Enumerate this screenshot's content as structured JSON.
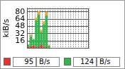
{
  "chart_data": {
    "type": "bar",
    "y_label": "kiB/s",
    "categories": [
      null,
      null,
      null,
      null,
      null,
      null,
      null,
      null,
      null,
      null,
      null,
      null,
      null,
      null,
      null,
      null,
      null,
      null,
      null,
      null,
      null,
      null,
      null,
      null
    ],
    "series": [
      {
        "color": "#e8322e",
        "values": [
          2,
          4,
          6,
          3,
          2,
          8,
          3,
          2,
          1,
          null,
          null,
          null,
          null,
          null,
          null,
          null,
          null,
          null,
          null,
          null,
          null,
          null,
          null,
          null
        ]
      },
      {
        "color": "#2db84a",
        "values": [
          6,
          22,
          14,
          58,
          72,
          28,
          50,
          70,
          4,
          null,
          null,
          null,
          null,
          null,
          null,
          null,
          null,
          null,
          null,
          null,
          null,
          null,
          null,
          null
        ]
      },
      {
        "color": "#f5a623",
        "values": [
          0,
          4,
          0,
          6,
          8,
          4,
          6,
          8,
          2,
          null,
          null,
          null,
          null,
          null,
          null,
          null,
          null,
          null,
          null,
          null,
          null,
          null,
          null,
          null
        ]
      }
    ],
    "ylim": [
      0,
      88
    ],
    "yticks": [
      16,
      32,
      48,
      64,
      80
    ],
    "stacked": true,
    "grid": true,
    "tick_labels": "y",
    "readouts": [
      {
        "color": "#e8322e",
        "value": 95,
        "unit": "B/s"
      },
      {
        "color": "#2db84a",
        "value": 124,
        "unit": "B/s"
      }
    ]
  }
}
